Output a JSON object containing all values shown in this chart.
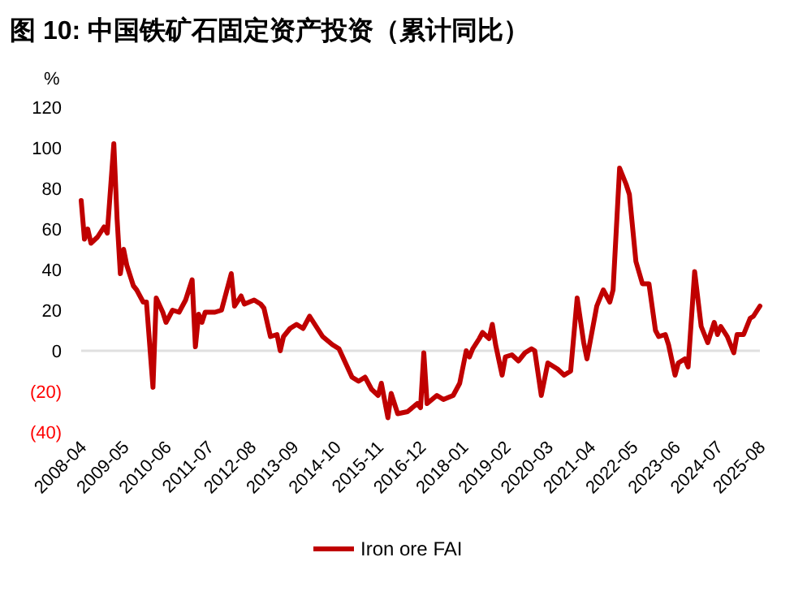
{
  "chart_data": {
    "type": "line",
    "title": "图 10: 中国铁矿石固定资产投资（累计同比）",
    "ylabel": "%",
    "x": [
      "2008-04",
      "2008-05",
      "2008-06",
      "2008-07",
      "2008-09",
      "2008-11",
      "2008-12",
      "2009-02",
      "2009-03",
      "2009-04",
      "2009-05",
      "2009-06",
      "2009-08",
      "2009-09",
      "2009-11",
      "2009-12",
      "2010-02",
      "2010-03",
      "2010-05",
      "2010-06",
      "2010-08",
      "2010-10",
      "2010-12",
      "2011-02",
      "2011-03",
      "2011-04",
      "2011-05",
      "2011-06",
      "2011-09",
      "2011-11",
      "2012-02",
      "2012-03",
      "2012-05",
      "2012-06",
      "2012-09",
      "2012-11",
      "2012-12",
      "2013-02",
      "2013-04",
      "2013-05",
      "2013-06",
      "2013-08",
      "2013-10",
      "2013-12",
      "2014-02",
      "2014-04",
      "2014-06",
      "2014-09",
      "2014-11",
      "2015-01",
      "2015-03",
      "2015-05",
      "2015-07",
      "2015-09",
      "2015-11",
      "2015-12",
      "2016-02",
      "2016-03",
      "2016-05",
      "2016-08",
      "2016-11",
      "2016-12",
      "2017-01",
      "2017-02",
      "2017-05",
      "2017-07",
      "2017-10",
      "2017-12",
      "2018-02",
      "2018-03",
      "2018-04",
      "2018-06",
      "2018-07",
      "2018-09",
      "2018-10",
      "2018-11",
      "2019-01",
      "2019-02",
      "2019-04",
      "2019-06",
      "2019-08",
      "2019-10",
      "2019-11",
      "2020-01",
      "2020-03",
      "2020-06",
      "2020-08",
      "2020-10",
      "2020-12",
      "2021-02",
      "2021-03",
      "2021-06",
      "2021-08",
      "2021-10",
      "2021-11",
      "2022-01",
      "2022-03",
      "2022-04",
      "2022-06",
      "2022-08",
      "2022-10",
      "2022-12",
      "2023-01",
      "2023-03",
      "2023-04",
      "2023-06",
      "2023-07",
      "2023-09",
      "2023-10",
      "2023-12",
      "2024-02",
      "2024-04",
      "2024-06",
      "2024-07",
      "2024-08",
      "2024-10",
      "2024-12",
      "2025-01",
      "2025-03",
      "2025-05",
      "2025-06",
      "2025-08"
    ],
    "series": [
      {
        "name": "Iron ore FAI",
        "color": "#c00000",
        "values": [
          74,
          55,
          60,
          53,
          56,
          61,
          58,
          102,
          65,
          38,
          50,
          42,
          32,
          30,
          24,
          24,
          -18,
          26,
          19,
          14,
          20,
          19,
          25,
          35,
          2,
          18,
          14,
          19,
          19,
          20,
          38,
          22,
          27,
          23,
          25,
          23,
          21,
          7,
          8,
          0,
          7,
          11,
          13,
          11,
          17,
          12,
          7,
          3,
          1,
          -6,
          -13,
          -15,
          -13,
          -19,
          -22,
          -16,
          -33,
          -21,
          -31,
          -30,
          -26,
          -28,
          -1,
          -26,
          -22,
          -24,
          -22,
          -16,
          0,
          -3,
          1,
          6,
          9,
          6,
          13,
          3,
          -12,
          -3,
          -2,
          -5,
          -1,
          1,
          0,
          -22,
          -6,
          -9,
          -12,
          -10,
          26,
          4,
          -4,
          22,
          30,
          24,
          30,
          90,
          82,
          77,
          44,
          33,
          33,
          10,
          7,
          8,
          3,
          -12,
          -6,
          -4,
          -8,
          39,
          12,
          4,
          14,
          8,
          12,
          7,
          -1,
          8,
          8,
          16,
          17,
          22
        ]
      }
    ],
    "xlim": [
      "2008-04",
      "2025-08"
    ],
    "xticks": [
      "2008-04",
      "2009-05",
      "2010-06",
      "2011-07",
      "2012-08",
      "2013-09",
      "2014-10",
      "2015-11",
      "2016-12",
      "2018-01",
      "2019-02",
      "2020-03",
      "2021-04",
      "2022-05",
      "2023-06",
      "2024-07",
      "2025-08"
    ],
    "ylim": [
      -40,
      120
    ],
    "yticks": [
      {
        "value": -40,
        "label": "(40)"
      },
      {
        "value": -20,
        "label": "(20)"
      },
      0,
      20,
      40,
      60,
      80,
      100,
      120
    ],
    "ref_lines": [
      {
        "axis": "y",
        "value": 0,
        "color": "#e0e0e0"
      }
    ],
    "legend": "bottom",
    "marker": "none",
    "line_style": "solid"
  }
}
